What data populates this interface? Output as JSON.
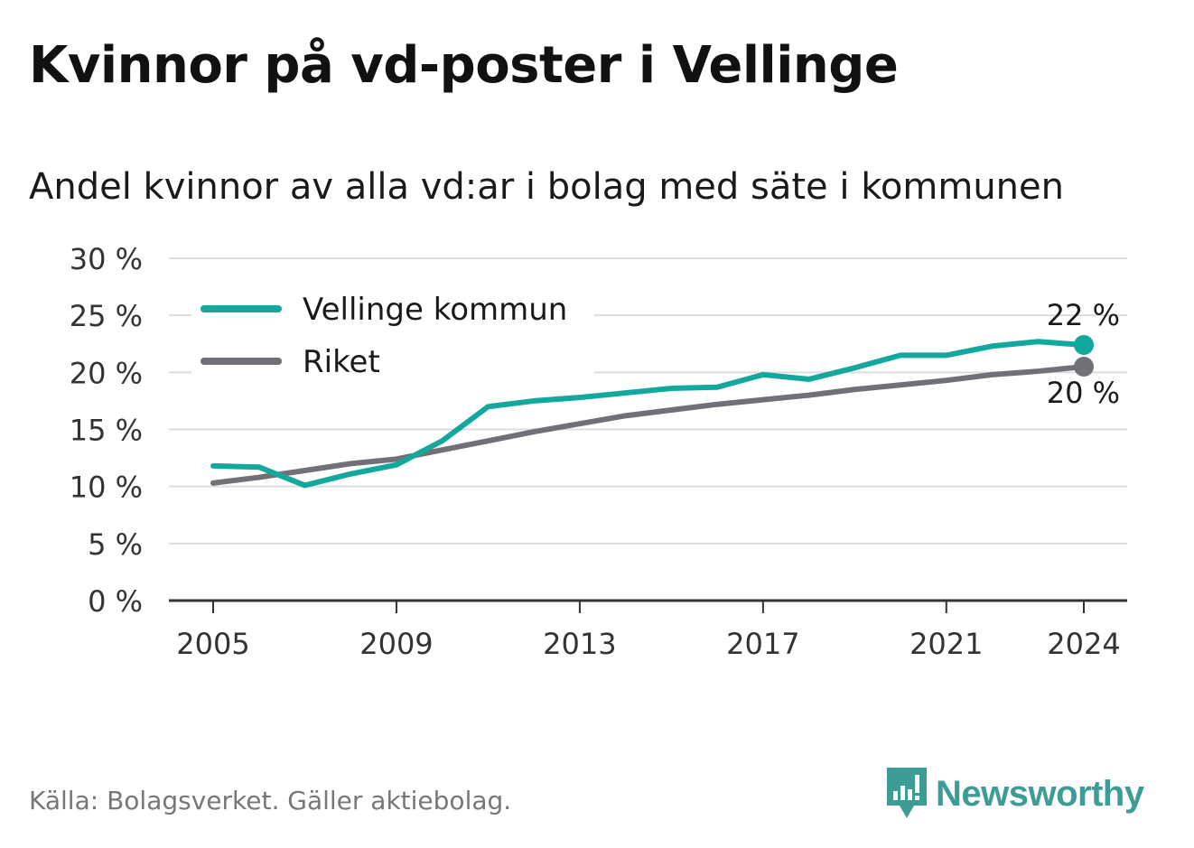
{
  "title": "Kvinnor på vd-poster i Vellinge",
  "subtitle": "Andel kvinnor av alla vd:ar i bolag med säte i kommunen",
  "source": "Källa: Bolagsverket. Gäller aktiebolag.",
  "brand": {
    "name": "Newsworthy",
    "color": "#3d9c93"
  },
  "chart_data": {
    "type": "line",
    "x": [
      2005,
      2006,
      2007,
      2008,
      2009,
      2010,
      2011,
      2012,
      2013,
      2014,
      2015,
      2016,
      2017,
      2018,
      2019,
      2020,
      2021,
      2022,
      2023,
      2024
    ],
    "series": [
      {
        "name": "Vellinge kommun",
        "color": "#13a89e",
        "values": [
          11.8,
          11.7,
          10.1,
          11.1,
          11.9,
          14.0,
          17.0,
          17.5,
          17.8,
          18.2,
          18.6,
          18.7,
          19.8,
          19.4,
          20.4,
          21.5,
          21.5,
          22.3,
          22.7,
          22.4
        ],
        "end_label": "22 %"
      },
      {
        "name": "Riket",
        "color": "#717076",
        "values": [
          10.3,
          10.8,
          11.4,
          12.0,
          12.4,
          13.2,
          14.0,
          14.8,
          15.5,
          16.2,
          16.7,
          17.2,
          17.6,
          18.0,
          18.5,
          18.9,
          19.3,
          19.8,
          20.1,
          20.5
        ],
        "end_label": "20 %"
      }
    ],
    "ylim": [
      0,
      30
    ],
    "y_ticks": [
      0,
      5,
      10,
      15,
      20,
      25,
      30
    ],
    "y_tick_labels": [
      "0 %",
      "5 %",
      "10 %",
      "15 %",
      "20 %",
      "25 %",
      "30 %"
    ],
    "x_ticks": [
      2005,
      2009,
      2013,
      2017,
      2021,
      2024
    ],
    "x_tick_labels": [
      "2005",
      "2009",
      "2013",
      "2017",
      "2021",
      "2024"
    ],
    "xlabel": "",
    "ylabel": "",
    "grid": true,
    "legend_position": "top-left"
  }
}
